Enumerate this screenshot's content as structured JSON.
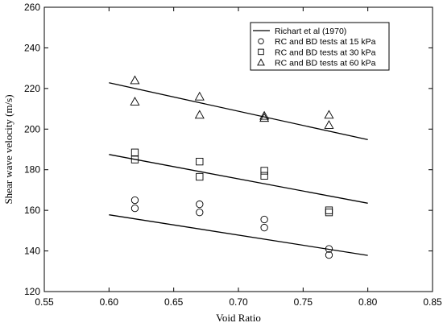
{
  "chart_data": {
    "type": "scatter",
    "xlabel": "Void Ratio",
    "ylabel": "Shear wave velocity (m/s)",
    "xlim": [
      0.55,
      0.85
    ],
    "ylim": [
      120,
      260
    ],
    "xticks": [
      "0.55",
      "0.60",
      "0.65",
      "0.70",
      "0.75",
      "0.80",
      "0.85"
    ],
    "yticks": [
      "120",
      "140",
      "160",
      "180",
      "200",
      "220",
      "240",
      "260"
    ],
    "legend_position": "top-right",
    "series": [
      {
        "name": "Richart et al (1970)",
        "kind": "line",
        "lines": [
          {
            "x": [
              0.6,
              0.8
            ],
            "y": [
              157.8,
              137.8
            ]
          },
          {
            "x": [
              0.6,
              0.8
            ],
            "y": [
              187.5,
              163.5
            ]
          },
          {
            "x": [
              0.6,
              0.8
            ],
            "y": [
              222.8,
              194.8
            ]
          }
        ]
      },
      {
        "name": "RC and BD tests at 15 kPa",
        "marker": "circle",
        "x": [
          0.62,
          0.62,
          0.67,
          0.67,
          0.72,
          0.72,
          0.77,
          0.77
        ],
        "y": [
          165.0,
          161.0,
          163.0,
          159.0,
          155.5,
          151.5,
          141.0,
          138.0
        ]
      },
      {
        "name": "RC and BD tests at 30 kPa",
        "marker": "square",
        "x": [
          0.62,
          0.62,
          0.67,
          0.67,
          0.72,
          0.72,
          0.77,
          0.77
        ],
        "y": [
          188.5,
          185.0,
          184.0,
          176.5,
          179.5,
          177.0,
          160.0,
          159.0
        ]
      },
      {
        "name": "RC and BD tests at 60 kPa",
        "marker": "triangle",
        "x": [
          0.62,
          0.62,
          0.67,
          0.67,
          0.72,
          0.72,
          0.77,
          0.77
        ],
        "y": [
          224.0,
          213.5,
          216.0,
          207.0,
          206.5,
          205.5,
          207.0,
          202.0
        ]
      }
    ]
  }
}
